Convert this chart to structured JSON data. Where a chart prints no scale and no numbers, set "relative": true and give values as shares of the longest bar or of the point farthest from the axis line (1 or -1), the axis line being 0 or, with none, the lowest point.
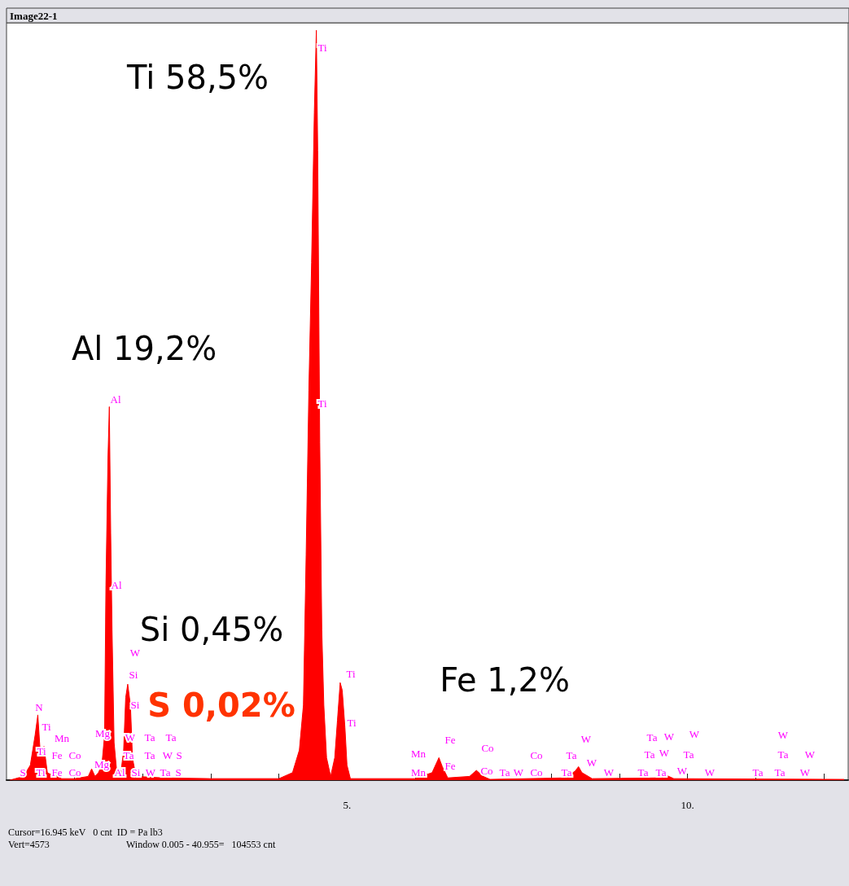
{
  "chart_data": {
    "type": "area",
    "title": "Image22-1",
    "relative": true,
    "xlim": [
      0,
      12.36
    ],
    "xticks": [
      {
        "value": 1,
        "label": null
      },
      {
        "value": 2,
        "label": null
      },
      {
        "value": 3,
        "label": null
      },
      {
        "value": 4,
        "label": null
      },
      {
        "value": 5,
        "label": "5."
      },
      {
        "value": 6,
        "label": null
      },
      {
        "value": 7,
        "label": null
      },
      {
        "value": 8,
        "label": null
      },
      {
        "value": 9,
        "label": null
      },
      {
        "value": 10,
        "label": "10."
      },
      {
        "value": 11,
        "label": null
      },
      {
        "value": 12,
        "label": null
      }
    ],
    "tick_labels": "x",
    "grid": false,
    "annotations": [
      "Ti 58,5%",
      "Al 19,2%",
      "Si 0,45%",
      "S 0,02%",
      "Fe 1,2%",
      "Cursor=16.945 keV   0 cnt  ID = Pa lb3",
      "Vert=4573",
      "Window 0.005 - 40.955=   104553 cnt",
      "N",
      "Ti",
      "Mn",
      "Ti",
      "Fe",
      "Co",
      "S",
      "Ti",
      "Fe",
      "Co",
      "Mg",
      "Mg",
      "Al",
      "Al",
      "Al",
      "W",
      "Si",
      "Si",
      "W",
      "Ta",
      "Ta",
      "Ta",
      "Ta",
      "W",
      "S",
      "Si",
      "W",
      "Ta",
      "S",
      "Ti",
      "Ti",
      "Ti",
      "Ti",
      "Mn",
      "Mn",
      "Fe",
      "Fe",
      "Co",
      "Co",
      "Ta",
      "W",
      "Co",
      "Co",
      "W",
      "Ta",
      "Ta",
      "W",
      "W",
      "Ta",
      "W",
      "W",
      "Ta",
      "W",
      "Ta",
      "Ta",
      "Ta",
      "W",
      "W",
      "Ta",
      "Ta",
      "W",
      "W",
      "Ta",
      "W"
    ],
    "series": [
      {
        "color": "#ff0000",
        "x": [
          0.05,
          0.25,
          0.35,
          0.42,
          0.46,
          0.5,
          0.55,
          0.6,
          0.7,
          0.75,
          0.8,
          1.0,
          1.2,
          1.25,
          1.3,
          1.35,
          1.4,
          1.44,
          1.46,
          1.49,
          1.51,
          1.53,
          1.55,
          1.58,
          1.62,
          1.68,
          1.72,
          1.75,
          1.78,
          1.82,
          1.85,
          1.9,
          2.3,
          3.0,
          4.0,
          4.2,
          4.3,
          4.36,
          4.4,
          4.44,
          4.48,
          4.52,
          4.55,
          4.57,
          4.6,
          4.63,
          4.66,
          4.7,
          4.76,
          4.82,
          4.86,
          4.9,
          4.93,
          4.97,
          5.0,
          5.05,
          6.0,
          6.25,
          6.35,
          6.4,
          6.48,
          6.8,
          6.9,
          7.0,
          7.1,
          8.2,
          8.35,
          8.4,
          8.45,
          8.6,
          9.6,
          9.7,
          9.8,
          12.3
        ],
        "values": [
          0,
          0.005,
          0.02,
          0.06,
          0.087,
          0.03,
          0.045,
          0.01,
          0.005,
          0.012,
          0.002,
          0.002,
          0.005,
          0.015,
          0.005,
          0.01,
          0.02,
          0.06,
          0.26,
          0.43,
          0.498,
          0.33,
          0.2,
          0.05,
          0.01,
          0.01,
          0.04,
          0.11,
          0.128,
          0.1,
          0.03,
          0.005,
          0.003,
          0.002,
          0.002,
          0.01,
          0.04,
          0.1,
          0.3,
          0.52,
          0.69,
          0.89,
          1.0,
          0.84,
          0.45,
          0.2,
          0.1,
          0.03,
          0.005,
          0.03,
          0.08,
          0.13,
          0.12,
          0.07,
          0.02,
          0.002,
          0.002,
          0.01,
          0.03,
          0.018,
          0.003,
          0.005,
          0.013,
          0.005,
          0.001,
          0.003,
          0.012,
          0.018,
          0.01,
          0.002,
          0.003,
          0.006,
          0.002,
          0.001
        ]
      }
    ]
  }
}
